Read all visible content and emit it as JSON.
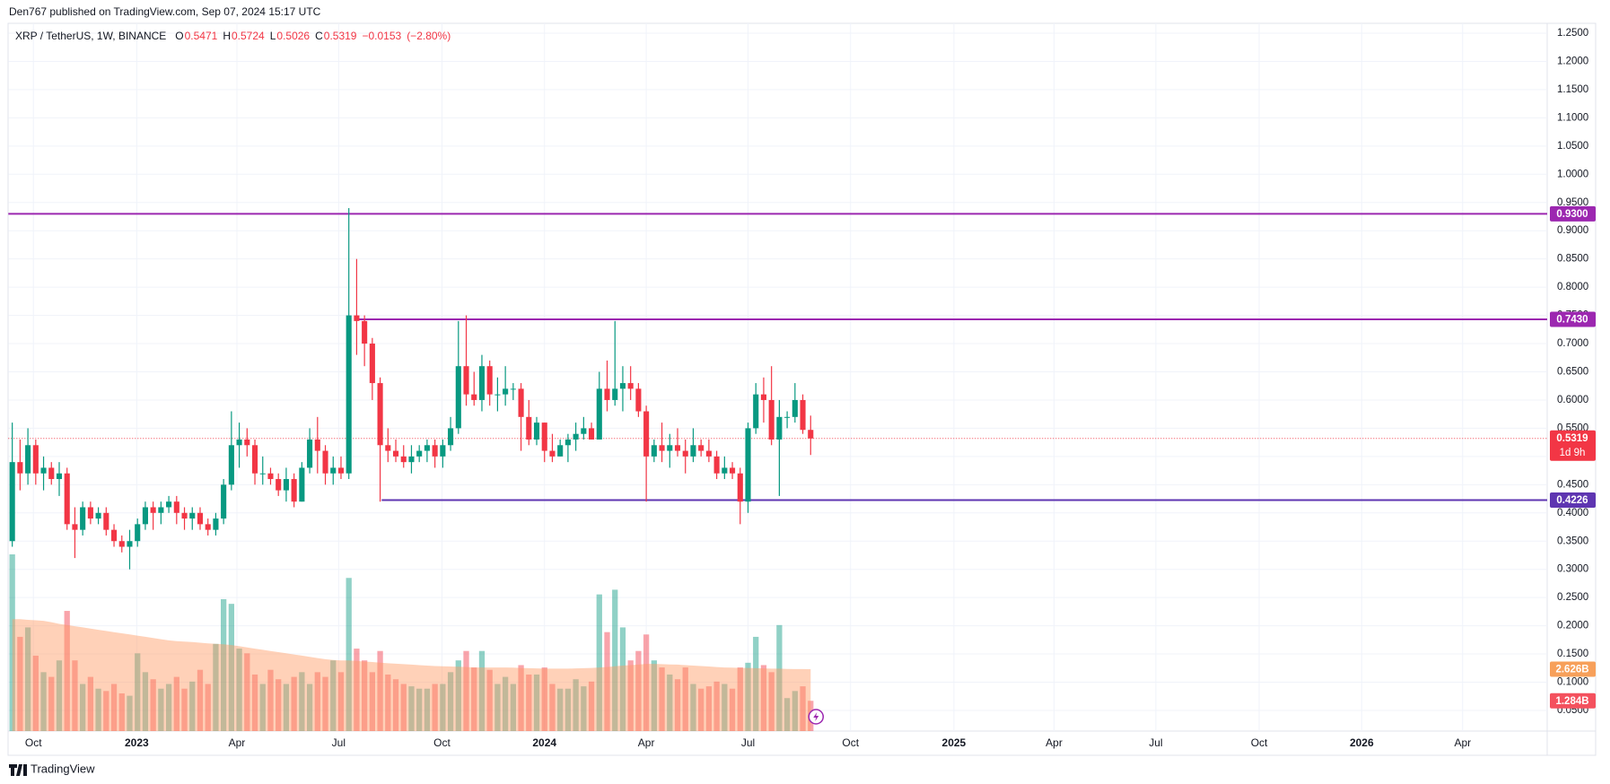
{
  "header": {
    "publisher": "Den767 published on TradingView.com, Sep 07, 2024 15:17 UTC"
  },
  "footer": {
    "brand": "TradingView"
  },
  "chart_data": {
    "type": "candlestick",
    "symbol": "XRP / TetherUS, 1W, BINANCE",
    "ohlc_legend": [
      {
        "label": "O",
        "value": 0.5471
      },
      {
        "label": "H",
        "value": 0.5724
      },
      {
        "label": "L",
        "value": 0.5026
      },
      {
        "label": "C",
        "value": 0.5319
      }
    ],
    "change": "−0.0153",
    "change_pct": "(−2.80%)",
    "up_color": "#089981",
    "down_color": "#f23645",
    "grid": true,
    "xlim": [
      -0.5,
      196.1
    ],
    "xticks": [
      {
        "value": 2.7,
        "label": "Oct"
      },
      {
        "value": 15.9,
        "label": "2023"
      },
      {
        "value": 28.7,
        "label": "Apr"
      },
      {
        "value": 41.7,
        "label": "Jul"
      },
      {
        "value": 54.9,
        "label": "Oct"
      },
      {
        "value": 68.0,
        "label": "2024"
      },
      {
        "value": 81.0,
        "label": "Apr"
      },
      {
        "value": 94.0,
        "label": "Jul"
      },
      {
        "value": 107.1,
        "label": "Oct"
      },
      {
        "value": 120.3,
        "label": "2025"
      },
      {
        "value": 133.1,
        "label": "Apr"
      },
      {
        "value": 146.1,
        "label": "Jul"
      },
      {
        "value": 159.3,
        "label": "Oct"
      },
      {
        "value": 172.4,
        "label": "2026"
      },
      {
        "value": 185.3,
        "label": "Apr"
      }
    ],
    "ylim": [
      0.0134,
      1.2675
    ],
    "yticks": [
      {
        "value": 0.05,
        "label": "0.0500"
      },
      {
        "value": 0.1,
        "label": "0.1000"
      },
      {
        "value": 0.15,
        "label": "0.1500"
      },
      {
        "value": 0.2,
        "label": "0.2000"
      },
      {
        "value": 0.25,
        "label": "0.2500"
      },
      {
        "value": 0.3,
        "label": "0.3000"
      },
      {
        "value": 0.35,
        "label": "0.3500"
      },
      {
        "value": 0.4,
        "label": "0.4000"
      },
      {
        "value": 0.45,
        "label": "0.4500"
      },
      {
        "value": 0.5,
        "label": "0.5000"
      },
      {
        "value": 0.55,
        "label": "0.5500"
      },
      {
        "value": 0.6,
        "label": "0.6000"
      },
      {
        "value": 0.65,
        "label": "0.6500"
      },
      {
        "value": 0.7,
        "label": "0.7000"
      },
      {
        "value": 0.75,
        "label": "0.7500"
      },
      {
        "value": 0.8,
        "label": "0.8000"
      },
      {
        "value": 0.85,
        "label": "0.8500"
      },
      {
        "value": 0.9,
        "label": "0.9000"
      },
      {
        "value": 0.95,
        "label": "0.9500"
      },
      {
        "value": 1.0,
        "label": "1.0000"
      },
      {
        "value": 1.05,
        "label": "1.0500"
      },
      {
        "value": 1.1,
        "label": "1.1000"
      },
      {
        "value": 1.15,
        "label": "1.1500"
      },
      {
        "value": 1.2,
        "label": "1.2000"
      },
      {
        "value": 1.25,
        "label": "1.2500"
      }
    ],
    "x": [
      0,
      1,
      2,
      3,
      4,
      5,
      6,
      7,
      8,
      9,
      10,
      11,
      12,
      13,
      14,
      15,
      16,
      17,
      18,
      19,
      20,
      21,
      22,
      23,
      24,
      25,
      26,
      27,
      28,
      29,
      30,
      31,
      32,
      33,
      34,
      35,
      36,
      37,
      38,
      39,
      40,
      41,
      42,
      43,
      44,
      45,
      46,
      47,
      48,
      49,
      50,
      51,
      52,
      53,
      54,
      55,
      56,
      57,
      58,
      59,
      60,
      61,
      62,
      63,
      64,
      65,
      66,
      67,
      68,
      69,
      70,
      71,
      72,
      73,
      74,
      75,
      76,
      77,
      78,
      79,
      80,
      81,
      82,
      83,
      84,
      85,
      86,
      87,
      88,
      89,
      90,
      91,
      92,
      93,
      94,
      95,
      96,
      97,
      98,
      99,
      100,
      101,
      102
    ],
    "open": [
      0.35,
      0.49,
      0.47,
      0.52,
      0.47,
      0.48,
      0.46,
      0.47,
      0.38,
      0.37,
      0.41,
      0.39,
      0.4,
      0.37,
      0.35,
      0.34,
      0.35,
      0.38,
      0.41,
      0.4,
      0.41,
      0.42,
      0.4,
      0.39,
      0.4,
      0.38,
      0.37,
      0.39,
      0.45,
      0.52,
      0.53,
      0.52,
      0.47,
      0.47,
      0.46,
      0.44,
      0.46,
      0.42,
      0.48,
      0.53,
      0.51,
      0.47,
      0.48,
      0.47,
      0.75,
      0.74,
      0.7,
      0.63,
      0.52,
      0.51,
      0.5,
      0.49,
      0.5,
      0.51,
      0.52,
      0.5,
      0.52,
      0.55,
      0.66,
      0.61,
      0.6,
      0.66,
      0.61,
      0.61,
      0.62,
      0.62,
      0.57,
      0.53,
      0.56,
      0.51,
      0.5,
      0.52,
      0.53,
      0.54,
      0.55,
      0.53,
      0.62,
      0.6,
      0.62,
      0.63,
      0.62,
      0.58,
      0.5,
      0.52,
      0.51,
      0.52,
      0.51,
      0.5,
      0.52,
      0.51,
      0.5,
      0.47,
      0.48,
      0.47,
      0.42,
      0.55,
      0.61,
      0.6,
      0.53,
      0.57,
      0.57,
      0.6,
      0.5471
    ],
    "high": [
      0.56,
      0.53,
      0.55,
      0.53,
      0.5,
      0.49,
      0.49,
      0.48,
      0.41,
      0.42,
      0.42,
      0.41,
      0.41,
      0.38,
      0.36,
      0.37,
      0.39,
      0.42,
      0.42,
      0.42,
      0.43,
      0.43,
      0.41,
      0.41,
      0.41,
      0.39,
      0.4,
      0.46,
      0.58,
      0.56,
      0.55,
      0.53,
      0.5,
      0.48,
      0.47,
      0.48,
      0.47,
      0.49,
      0.55,
      0.57,
      0.52,
      0.5,
      0.5,
      0.94,
      0.85,
      0.75,
      0.71,
      0.64,
      0.55,
      0.53,
      0.52,
      0.52,
      0.52,
      0.53,
      0.53,
      0.53,
      0.57,
      0.74,
      0.75,
      0.65,
      0.68,
      0.67,
      0.64,
      0.66,
      0.63,
      0.63,
      0.6,
      0.57,
      0.56,
      0.54,
      0.53,
      0.54,
      0.56,
      0.57,
      0.56,
      0.65,
      0.67,
      0.74,
      0.66,
      0.66,
      0.63,
      0.59,
      0.53,
      0.56,
      0.54,
      0.55,
      0.53,
      0.55,
      0.53,
      0.53,
      0.51,
      0.5,
      0.49,
      0.48,
      0.56,
      0.63,
      0.64,
      0.66,
      0.6,
      0.58,
      0.63,
      0.61,
      0.5724
    ],
    "low": [
      0.34,
      0.44,
      0.45,
      0.45,
      0.44,
      0.45,
      0.43,
      0.37,
      0.32,
      0.36,
      0.38,
      0.38,
      0.36,
      0.34,
      0.33,
      0.3,
      0.34,
      0.37,
      0.37,
      0.38,
      0.4,
      0.38,
      0.37,
      0.37,
      0.37,
      0.36,
      0.36,
      0.38,
      0.44,
      0.48,
      0.5,
      0.45,
      0.45,
      0.45,
      0.43,
      0.42,
      0.41,
      0.42,
      0.47,
      0.47,
      0.45,
      0.45,
      0.46,
      0.46,
      0.68,
      0.66,
      0.6,
      0.42,
      0.49,
      0.49,
      0.48,
      0.47,
      0.49,
      0.49,
      0.48,
      0.48,
      0.51,
      0.54,
      0.59,
      0.59,
      0.58,
      0.59,
      0.58,
      0.59,
      0.6,
      0.51,
      0.52,
      0.52,
      0.49,
      0.49,
      0.5,
      0.49,
      0.51,
      0.53,
      0.53,
      0.53,
      0.58,
      0.59,
      0.58,
      0.6,
      0.57,
      0.42,
      0.49,
      0.49,
      0.48,
      0.5,
      0.47,
      0.49,
      0.5,
      0.49,
      0.46,
      0.46,
      0.46,
      0.38,
      0.4,
      0.54,
      0.56,
      0.52,
      0.43,
      0.55,
      0.56,
      0.54,
      0.5026
    ],
    "close": [
      0.49,
      0.47,
      0.52,
      0.47,
      0.48,
      0.46,
      0.47,
      0.38,
      0.37,
      0.41,
      0.39,
      0.4,
      0.37,
      0.35,
      0.34,
      0.35,
      0.38,
      0.41,
      0.4,
      0.41,
      0.42,
      0.4,
      0.39,
      0.4,
      0.38,
      0.37,
      0.39,
      0.45,
      0.52,
      0.53,
      0.52,
      0.47,
      0.47,
      0.46,
      0.44,
      0.46,
      0.42,
      0.48,
      0.53,
      0.51,
      0.47,
      0.48,
      0.47,
      0.75,
      0.74,
      0.7,
      0.63,
      0.52,
      0.51,
      0.5,
      0.49,
      0.5,
      0.51,
      0.52,
      0.5,
      0.52,
      0.55,
      0.66,
      0.61,
      0.6,
      0.66,
      0.61,
      0.61,
      0.62,
      0.62,
      0.57,
      0.53,
      0.56,
      0.51,
      0.5,
      0.52,
      0.53,
      0.54,
      0.55,
      0.53,
      0.62,
      0.6,
      0.62,
      0.63,
      0.62,
      0.58,
      0.5,
      0.52,
      0.51,
      0.52,
      0.51,
      0.5,
      0.52,
      0.51,
      0.5,
      0.47,
      0.48,
      0.47,
      0.42,
      0.55,
      0.61,
      0.6,
      0.53,
      0.57,
      0.57,
      0.6,
      0.5471,
      0.5319
    ],
    "volume_ylim": [
      0,
      7.5
    ],
    "volume": [
      7.5,
      4.0,
      4.4,
      3.2,
      2.5,
      2.3,
      3.0,
      5.1,
      3.0,
      2.0,
      2.3,
      1.8,
      1.7,
      2.0,
      1.6,
      1.5,
      3.3,
      2.5,
      2.2,
      1.8,
      2.0,
      2.3,
      1.8,
      2.1,
      2.6,
      2.0,
      3.7,
      5.6,
      5.4,
      3.5,
      3.3,
      2.4,
      2.0,
      2.6,
      2.2,
      2.0,
      2.3,
      2.5,
      2.0,
      2.5,
      2.3,
      3.0,
      2.5,
      6.5,
      3.5,
      3.0,
      2.5,
      3.4,
      2.4,
      2.2,
      2.0,
      1.9,
      1.8,
      1.8,
      2.0,
      2.0,
      2.5,
      3.0,
      3.4,
      2.7,
      3.4,
      2.6,
      2.0,
      2.3,
      2.0,
      2.8,
      2.4,
      2.4,
      2.7,
      2.0,
      1.8,
      1.8,
      2.2,
      1.9,
      2.1,
      5.8,
      4.2,
      6.0,
      4.4,
      3.0,
      3.4,
      4.1,
      3.0,
      2.7,
      2.4,
      2.2,
      2.7,
      2.0,
      1.8,
      1.9,
      2.1,
      2.0,
      1.8,
      2.7,
      2.9,
      4.0,
      2.8,
      2.5,
      4.5,
      1.4,
      1.7,
      1.9,
      1.284
    ],
    "volume_ma_color": "#ff9a62",
    "volume_ma": [
      4.75,
      4.75,
      4.72,
      4.7,
      4.68,
      4.62,
      4.55,
      4.5,
      4.45,
      4.4,
      4.35,
      4.3,
      4.25,
      4.2,
      4.15,
      4.1,
      4.05,
      4.0,
      3.95,
      3.9,
      3.85,
      3.82,
      3.8,
      3.78,
      3.75,
      3.72,
      3.7,
      3.68,
      3.65,
      3.6,
      3.55,
      3.5,
      3.45,
      3.4,
      3.35,
      3.3,
      3.25,
      3.2,
      3.15,
      3.1,
      3.05,
      3.02,
      3.0,
      3.0,
      2.98,
      2.95,
      2.93,
      2.9,
      2.88,
      2.86,
      2.84,
      2.82,
      2.8,
      2.78,
      2.76,
      2.75,
      2.74,
      2.73,
      2.72,
      2.7,
      2.7,
      2.7,
      2.7,
      2.7,
      2.69,
      2.68,
      2.67,
      2.66,
      2.65,
      2.65,
      2.65,
      2.65,
      2.66,
      2.67,
      2.68,
      2.7,
      2.72,
      2.75,
      2.78,
      2.8,
      2.82,
      2.85,
      2.85,
      2.84,
      2.83,
      2.82,
      2.8,
      2.78,
      2.76,
      2.74,
      2.72,
      2.7,
      2.69,
      2.68,
      2.68,
      2.67,
      2.66,
      2.65,
      2.65,
      2.64,
      2.63,
      2.63,
      2.626
    ],
    "volume_ma_tag": {
      "value": 2.626,
      "label": "2.626B"
    },
    "volume_tag": {
      "value": 1.284,
      "label": "1.284B"
    },
    "price_tag": 0.5319,
    "countdown": "1d 9h",
    "levels": [
      {
        "value": 0.93,
        "label": "0.9300",
        "color": "#9c27b0",
        "from_x": -0.5
      },
      {
        "value": 0.743,
        "label": "0.7430",
        "color": "#9c27b0",
        "from_x": 43.7
      },
      {
        "value": 0.4226,
        "label": "0.4226",
        "color": "#5e35b1",
        "from_x": 47.2
      }
    ]
  }
}
